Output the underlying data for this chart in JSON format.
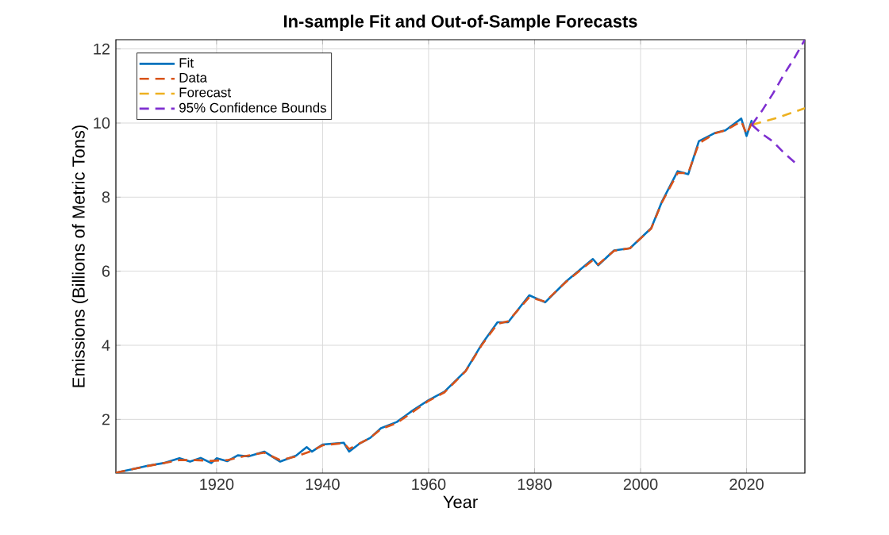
{
  "chart_data": {
    "type": "line",
    "title": "In-sample Fit and Out-of-Sample Forecasts",
    "xlabel": "Year",
    "ylabel": "Emissions (Billions of Metric Tons)",
    "xlim": [
      1901,
      2031
    ],
    "ylim": [
      0.55,
      12.25
    ],
    "xticks": [
      1920,
      1940,
      1960,
      1980,
      2000,
      2020
    ],
    "yticks": [
      2,
      4,
      6,
      8,
      10,
      12
    ],
    "grid": true,
    "legend": "top left",
    "series": [
      {
        "name": "Fit",
        "color": "#0072bd",
        "line_style": "solid",
        "x": [
          1901,
          1904,
          1907,
          1910,
          1913,
          1915,
          1917,
          1919,
          1920,
          1922,
          1924,
          1926,
          1929,
          1932,
          1935,
          1937,
          1938,
          1940,
          1944,
          1945,
          1947,
          1949,
          1951,
          1954,
          1957,
          1960,
          1963,
          1967,
          1970,
          1973,
          1975,
          1979,
          1982,
          1986,
          1991,
          1992,
          1995,
          1998,
          2002,
          2004,
          2007,
          2009,
          2011,
          2014,
          2016,
          2019,
          2020,
          2021
        ],
        "values": [
          0.56,
          0.65,
          0.75,
          0.82,
          0.95,
          0.86,
          0.96,
          0.82,
          0.95,
          0.87,
          1.03,
          1.0,
          1.13,
          0.86,
          1.02,
          1.25,
          1.13,
          1.32,
          1.37,
          1.13,
          1.35,
          1.5,
          1.76,
          1.93,
          2.24,
          2.52,
          2.75,
          3.31,
          4.02,
          4.62,
          4.62,
          5.35,
          5.16,
          5.73,
          6.33,
          6.16,
          6.56,
          6.62,
          7.16,
          7.87,
          8.7,
          8.62,
          9.51,
          9.73,
          9.8,
          10.12,
          9.65,
          10.08
        ]
      },
      {
        "name": "Data",
        "color": "#d95319",
        "line_style": "dashed",
        "x": [
          1901,
          1904,
          1907,
          1910,
          1913,
          1916,
          1919,
          1922,
          1925,
          1929,
          1932,
          1935,
          1938,
          1940,
          1944,
          1945,
          1947,
          1949,
          1951,
          1954,
          1957,
          1960,
          1963,
          1967,
          1970,
          1973,
          1975,
          1979,
          1982,
          1986,
          1991,
          1992,
          1995,
          1998,
          2002,
          2004,
          2007,
          2009,
          2011,
          2014,
          2016,
          2019,
          2020,
          2021
        ],
        "values": [
          0.56,
          0.65,
          0.74,
          0.82,
          0.9,
          0.9,
          0.88,
          0.9,
          1.0,
          1.1,
          0.9,
          1.0,
          1.15,
          1.3,
          1.36,
          1.2,
          1.35,
          1.5,
          1.74,
          1.9,
          2.2,
          2.5,
          2.73,
          3.3,
          4.0,
          4.58,
          4.65,
          5.3,
          5.18,
          5.72,
          6.3,
          6.18,
          6.55,
          6.62,
          7.15,
          7.85,
          8.65,
          8.65,
          9.45,
          9.72,
          9.8,
          10.05,
          9.7,
          10.0
        ]
      },
      {
        "name": "Forecast",
        "color": "#edb120",
        "line_style": "dashed",
        "x": [
          2021,
          2026,
          2031
        ],
        "values": [
          9.95,
          10.15,
          10.4
        ]
      },
      {
        "name": "95% Confidence Bounds",
        "color": "#7e2fd0",
        "line_style": "dashed",
        "x": [
          2021,
          2023,
          2025,
          2027,
          2029,
          2031
        ],
        "values": [
          9.95,
          10.35,
          10.8,
          11.3,
          11.75,
          12.25
        ]
      },
      {
        "color": "#7e2fd0",
        "line_style": "dashed",
        "x": [
          2021,
          2023,
          2025,
          2027,
          2029.4
        ],
        "values": [
          9.95,
          9.7,
          9.5,
          9.2,
          8.9
        ]
      }
    ]
  }
}
